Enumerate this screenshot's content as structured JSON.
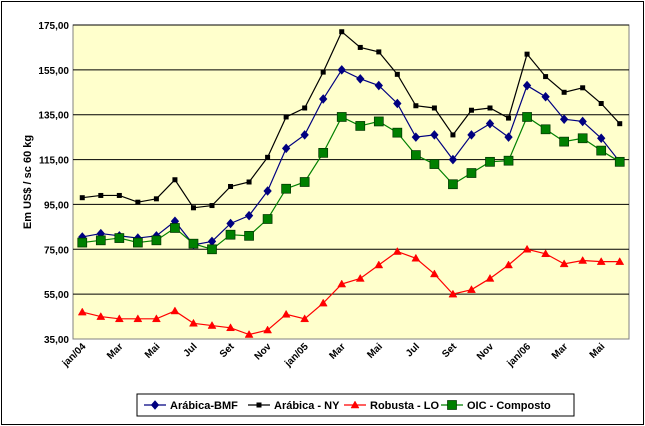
{
  "chart_data": {
    "type": "line",
    "ylabel": "Em US$ / sc 60 kg",
    "xlabel": "",
    "ylim": [
      35,
      175
    ],
    "yticks": [
      35,
      55,
      75,
      95,
      115,
      135,
      155,
      175
    ],
    "ytick_labels": [
      "35,00",
      "55,00",
      "75,00",
      "95,00",
      "115,00",
      "135,00",
      "155,00",
      "175,00"
    ],
    "grid": "horizontal",
    "legend_position": "bottom",
    "plot_background": "#FFFFCC",
    "x_tick_labels": [
      "jan/04",
      "Mar",
      "Mai",
      "Jul",
      "Set",
      "Nov",
      "jan/05",
      "Mar",
      "Mai",
      "Jul",
      "Set",
      "Nov",
      "jan/06",
      "Mar",
      "Mai"
    ],
    "x_tick_step": 2,
    "n_points": 30,
    "series": [
      {
        "name": "Arábica-BMF",
        "color": "#000080",
        "marker": "diamond",
        "values": [
          80.5,
          82,
          81,
          80,
          81,
          87.5,
          77,
          78.5,
          86.5,
          90,
          101,
          120,
          126,
          142,
          155,
          151,
          148,
          140,
          125,
          126,
          115,
          126,
          131,
          125,
          148,
          143,
          133,
          132,
          124.5,
          114
        ]
      },
      {
        "name": "Arábica - NY",
        "color": "#000000",
        "marker": "square",
        "values": [
          98,
          99,
          99,
          96,
          97.5,
          106,
          93.5,
          94.5,
          103,
          105,
          116,
          134,
          138,
          154,
          172,
          165,
          163,
          153,
          139,
          138,
          126,
          137,
          138,
          133.5,
          162,
          152,
          145,
          147,
          140,
          131
        ]
      },
      {
        "name": "Robusta - LO",
        "color": "#FF0000",
        "marker": "triangle",
        "values": [
          47,
          45,
          44,
          44,
          44,
          47.5,
          42,
          41,
          40,
          37,
          39,
          46,
          44,
          51,
          59.5,
          62,
          68,
          74,
          71,
          64,
          55,
          57,
          62,
          68,
          75,
          73,
          68.5,
          70,
          69.5,
          69.5
        ]
      },
      {
        "name": "OIC - Composto",
        "color": "#008000",
        "marker": "bigsquare",
        "values": [
          78,
          79,
          80,
          78,
          79,
          84.5,
          77.5,
          75,
          81.5,
          81,
          88.5,
          102,
          105,
          118,
          134,
          130,
          132,
          127,
          117,
          113,
          104,
          109,
          114,
          114.5,
          134,
          128.5,
          123,
          124.5,
          119,
          114
        ]
      }
    ]
  }
}
